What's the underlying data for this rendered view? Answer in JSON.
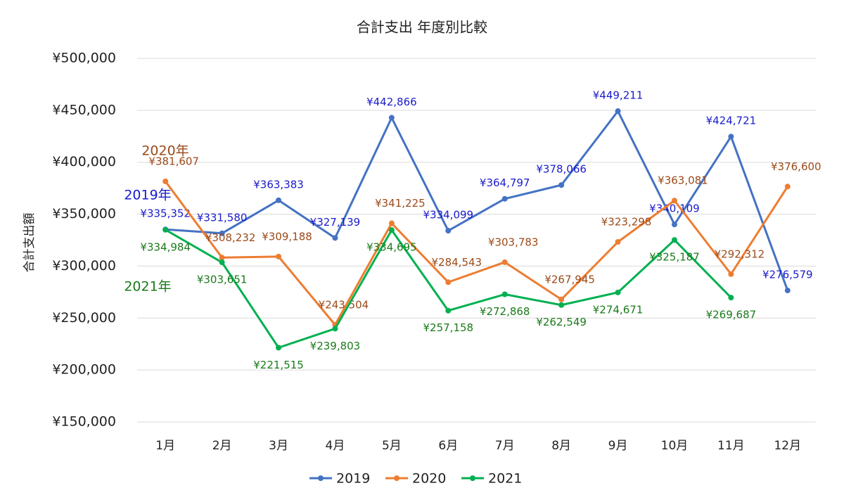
{
  "chart_data": {
    "type": "line",
    "title": "合計支出 年度別比較",
    "y_label": "合計支出額",
    "categories": [
      "1月",
      "2月",
      "3月",
      "4月",
      "5月",
      "6月",
      "7月",
      "8月",
      "9月",
      "10月",
      "11月",
      "12月"
    ],
    "series": [
      {
        "name": "2019",
        "color": "#4472c4",
        "label_color": "#1a1acc",
        "tag": "2019年",
        "values": [
          335352,
          331580,
          363383,
          327139,
          442866,
          334099,
          364797,
          378066,
          449211,
          340109,
          424721,
          276579
        ],
        "value_labels": [
          "¥335,352",
          "¥331,580",
          "¥363,383",
          "¥327,139",
          "¥442,866",
          "¥334,099",
          "¥364,797",
          "¥378,066",
          "¥449,211",
          "¥340,109",
          "¥424,721",
          "¥276,579"
        ]
      },
      {
        "name": "2020",
        "color": "#ed7d31",
        "label_color": "#9c4a1a",
        "tag": "2020年",
        "values": [
          381607,
          308232,
          309188,
          243504,
          341225,
          284543,
          303783,
          267945,
          323298,
          363081,
          292312,
          376600
        ],
        "value_labels": [
          "¥381,607",
          "¥308,232",
          "¥309,188",
          "¥243,504",
          "¥341,225",
          "¥284,543",
          "¥303,783",
          "¥267,945",
          "¥323,298",
          "¥363,081",
          "¥292,312",
          "¥376,600"
        ]
      },
      {
        "name": "2021",
        "color": "#00b050",
        "label_color": "#1a7a1a",
        "tag": "2021年",
        "values": [
          334984,
          303651,
          221515,
          239803,
          334695,
          257158,
          272868,
          262549,
          274671,
          325187,
          269687,
          null
        ],
        "value_labels": [
          "¥334,984",
          "¥303,651",
          "¥221,515",
          "¥239,803",
          "¥334,695",
          "¥257,158",
          "¥272,868",
          "¥262,549",
          "¥274,671",
          "¥325,187",
          "¥269,687",
          null
        ]
      }
    ],
    "ylim": [
      150000,
      500000
    ],
    "yticks": [
      {
        "value": 150000,
        "label": "¥150,000"
      },
      {
        "value": 200000,
        "label": "¥200,000"
      },
      {
        "value": 250000,
        "label": "¥250,000"
      },
      {
        "value": 300000,
        "label": "¥300,000"
      },
      {
        "value": 350000,
        "label": "¥350,000"
      },
      {
        "value": 400000,
        "label": "¥400,000"
      },
      {
        "value": 450000,
        "label": "¥450,000"
      },
      {
        "value": 500000,
        "label": "¥500,000"
      }
    ],
    "grid": true,
    "legend": "bottom"
  }
}
